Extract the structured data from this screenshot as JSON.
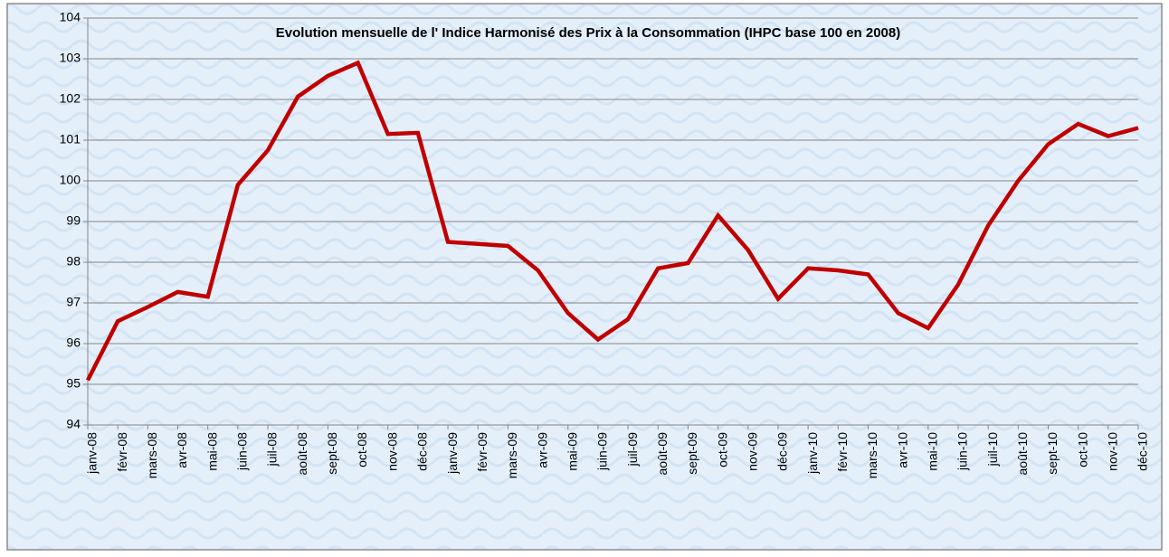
{
  "chart_data": {
    "type": "line",
    "title": "Evolution mensuelle de l' Indice Harmonisé des Prix à la Consommation (IHPC base 100 en 2008)",
    "categories": [
      "janv-08",
      "févr-08",
      "mars-08",
      "avr-08",
      "mai-08",
      "juin-08",
      "juil-08",
      "août-08",
      "sept-08",
      "oct-08",
      "nov-08",
      "déc-08",
      "janv-09",
      "févr-09",
      "mars-09",
      "avr-09",
      "mai-09",
      "juin-09",
      "juil-09",
      "août-09",
      "sept-09",
      "oct-09",
      "nov-09",
      "déc-09",
      "janv-10",
      "févr-10",
      "mars-10",
      "avr-10",
      "mai-10",
      "juin-10",
      "juil-10",
      "août-10",
      "sept-10",
      "oct-10",
      "nov-10",
      "déc-10"
    ],
    "series": [
      {
        "name": "IHPC",
        "color": "#c00000",
        "values": [
          95.1,
          96.55,
          96.9,
          97.27,
          97.15,
          99.9,
          100.75,
          102.07,
          102.58,
          102.9,
          101.15,
          101.18,
          98.5,
          98.45,
          98.4,
          97.8,
          96.75,
          96.1,
          96.6,
          97.85,
          97.98,
          99.15,
          98.3,
          97.1,
          97.85,
          97.8,
          97.7,
          96.75,
          96.38,
          97.45,
          98.9,
          100.0,
          100.9,
          101.4,
          101.1,
          101.3
        ]
      }
    ],
    "ylim": [
      94,
      104
    ],
    "yticks": [
      94,
      95,
      96,
      97,
      98,
      99,
      100,
      101,
      102,
      103,
      104
    ],
    "grid": true
  }
}
